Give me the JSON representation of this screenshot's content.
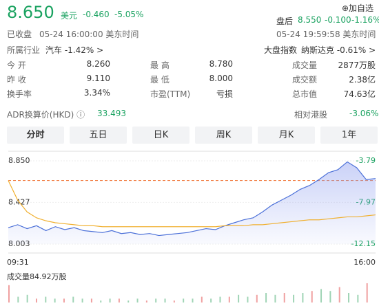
{
  "header": {
    "price": "8.650",
    "currency": "美元",
    "change": "-0.460",
    "change_pct": "-5.05%",
    "add_watch": "⊕加自选",
    "after_label": "盘后",
    "after_price": "8.550",
    "after_change": "-0.100",
    "after_pct": "-1.16%",
    "status": "已收盘",
    "close_time": "05-24 16:00:00 美东时间",
    "after_time": "05-24 19:59:58 美东时间",
    "industry_label": "所属行业",
    "industry": "汽车 -1.42% >",
    "index_label": "大盘指数",
    "index": "纳斯达克 -0.61% >"
  },
  "stats": [
    [
      "今 开",
      "8.260",
      "最 高",
      "8.780",
      "成交量",
      "2877万股"
    ],
    [
      "昨 收",
      "9.110",
      "最 低",
      "8.000",
      "成交额",
      "2.38亿"
    ],
    [
      "换手率",
      "3.34%",
      "市盈(TTM)",
      "亏损",
      "总市值",
      "74.63亿"
    ]
  ],
  "adr": {
    "label": "ADR换算价(HKD) ⓘ",
    "value": "33.493",
    "relative_label": "相对港股",
    "relative_value": "-3.06%"
  },
  "tabs": [
    "分时",
    "五日",
    "日K",
    "周K",
    "月K",
    "1年"
  ],
  "intraday": {
    "type": "line",
    "ylim": [
      8.003,
      8.85
    ],
    "yticks": [
      {
        "value": 8.85,
        "label": "8.850"
      },
      {
        "value": 8.427,
        "label": "8.427"
      },
      {
        "value": 8.003,
        "label": "8.003"
      }
    ],
    "y2lim": [
      -12.15,
      -3.79
    ],
    "y2ticks": [
      -3.79,
      -7.97,
      -12.15
    ],
    "x_labels": [
      "09:31",
      "16:00"
    ],
    "ref_line": 8.65,
    "series": [
      {
        "name": "price",
        "color": "#4a6fd8",
        "values": [
          8.17,
          8.2,
          8.16,
          8.19,
          8.14,
          8.18,
          8.15,
          8.17,
          8.14,
          8.13,
          8.12,
          8.14,
          8.11,
          8.12,
          8.1,
          8.11,
          8.09,
          8.1,
          8.11,
          8.12,
          8.14,
          8.16,
          8.15,
          8.19,
          8.22,
          8.25,
          8.27,
          8.33,
          8.4,
          8.45,
          8.5,
          8.56,
          8.6,
          8.66,
          8.73,
          8.76,
          8.84,
          8.78,
          8.66,
          8.67
        ]
      },
      {
        "name": "average",
        "color": "#f0b030",
        "values": [
          8.65,
          8.45,
          8.33,
          8.27,
          8.24,
          8.22,
          8.21,
          8.2,
          8.19,
          8.19,
          8.18,
          8.18,
          8.18,
          8.18,
          8.18,
          8.18,
          8.18,
          8.18,
          8.18,
          8.18,
          8.18,
          8.18,
          8.18,
          8.19,
          8.19,
          8.19,
          8.2,
          8.2,
          8.21,
          8.22,
          8.23,
          8.24,
          8.25,
          8.25,
          8.26,
          8.27,
          8.28,
          8.28,
          8.29,
          8.3
        ]
      }
    ],
    "volume_label": "成交量84.92万股",
    "volume": [
      9,
      3,
      4,
      2,
      3,
      2,
      2,
      3,
      2,
      2,
      1,
      2,
      2,
      1,
      2,
      1,
      2,
      2,
      1,
      2,
      2,
      3,
      2,
      3,
      3,
      4,
      3,
      4,
      5,
      4,
      5,
      4,
      5,
      6,
      7,
      6,
      8,
      5,
      4,
      10
    ]
  }
}
